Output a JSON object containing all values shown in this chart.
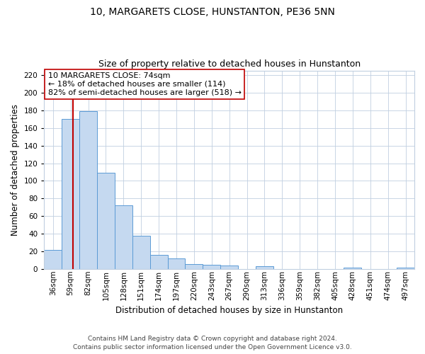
{
  "title": "10, MARGARETS CLOSE, HUNSTANTON, PE36 5NN",
  "subtitle": "Size of property relative to detached houses in Hunstanton",
  "xlabel": "Distribution of detached houses by size in Hunstanton",
  "ylabel": "Number of detached properties",
  "footer_line1": "Contains HM Land Registry data © Crown copyright and database right 2024.",
  "footer_line2": "Contains public sector information licensed under the Open Government Licence v3.0.",
  "bar_labels": [
    "36sqm",
    "59sqm",
    "82sqm",
    "105sqm",
    "128sqm",
    "151sqm",
    "174sqm",
    "197sqm",
    "220sqm",
    "243sqm",
    "267sqm",
    "290sqm",
    "313sqm",
    "336sqm",
    "359sqm",
    "382sqm",
    "405sqm",
    "428sqm",
    "451sqm",
    "474sqm",
    "497sqm"
  ],
  "bar_values": [
    22,
    170,
    179,
    109,
    72,
    38,
    16,
    12,
    6,
    5,
    4,
    0,
    3,
    0,
    0,
    0,
    0,
    2,
    0,
    0,
    2
  ],
  "bar_color": "#c5d9f0",
  "bar_edge_color": "#5b9bd5",
  "ylim": [
    0,
    225
  ],
  "yticks": [
    0,
    20,
    40,
    60,
    80,
    100,
    120,
    140,
    160,
    180,
    200,
    220
  ],
  "property_line_color": "#c00000",
  "annotation_title": "10 MARGARETS CLOSE: 74sqm",
  "annotation_line1": "← 18% of detached houses are smaller (114)",
  "annotation_line2": "82% of semi-detached houses are larger (518) →",
  "property_size": 74,
  "background_color": "#ffffff",
  "grid_color": "#c0cfe0",
  "title_fontsize": 10,
  "subtitle_fontsize": 9,
  "axis_label_fontsize": 8.5,
  "tick_fontsize": 7.5,
  "annotation_fontsize": 8,
  "footer_fontsize": 6.5
}
